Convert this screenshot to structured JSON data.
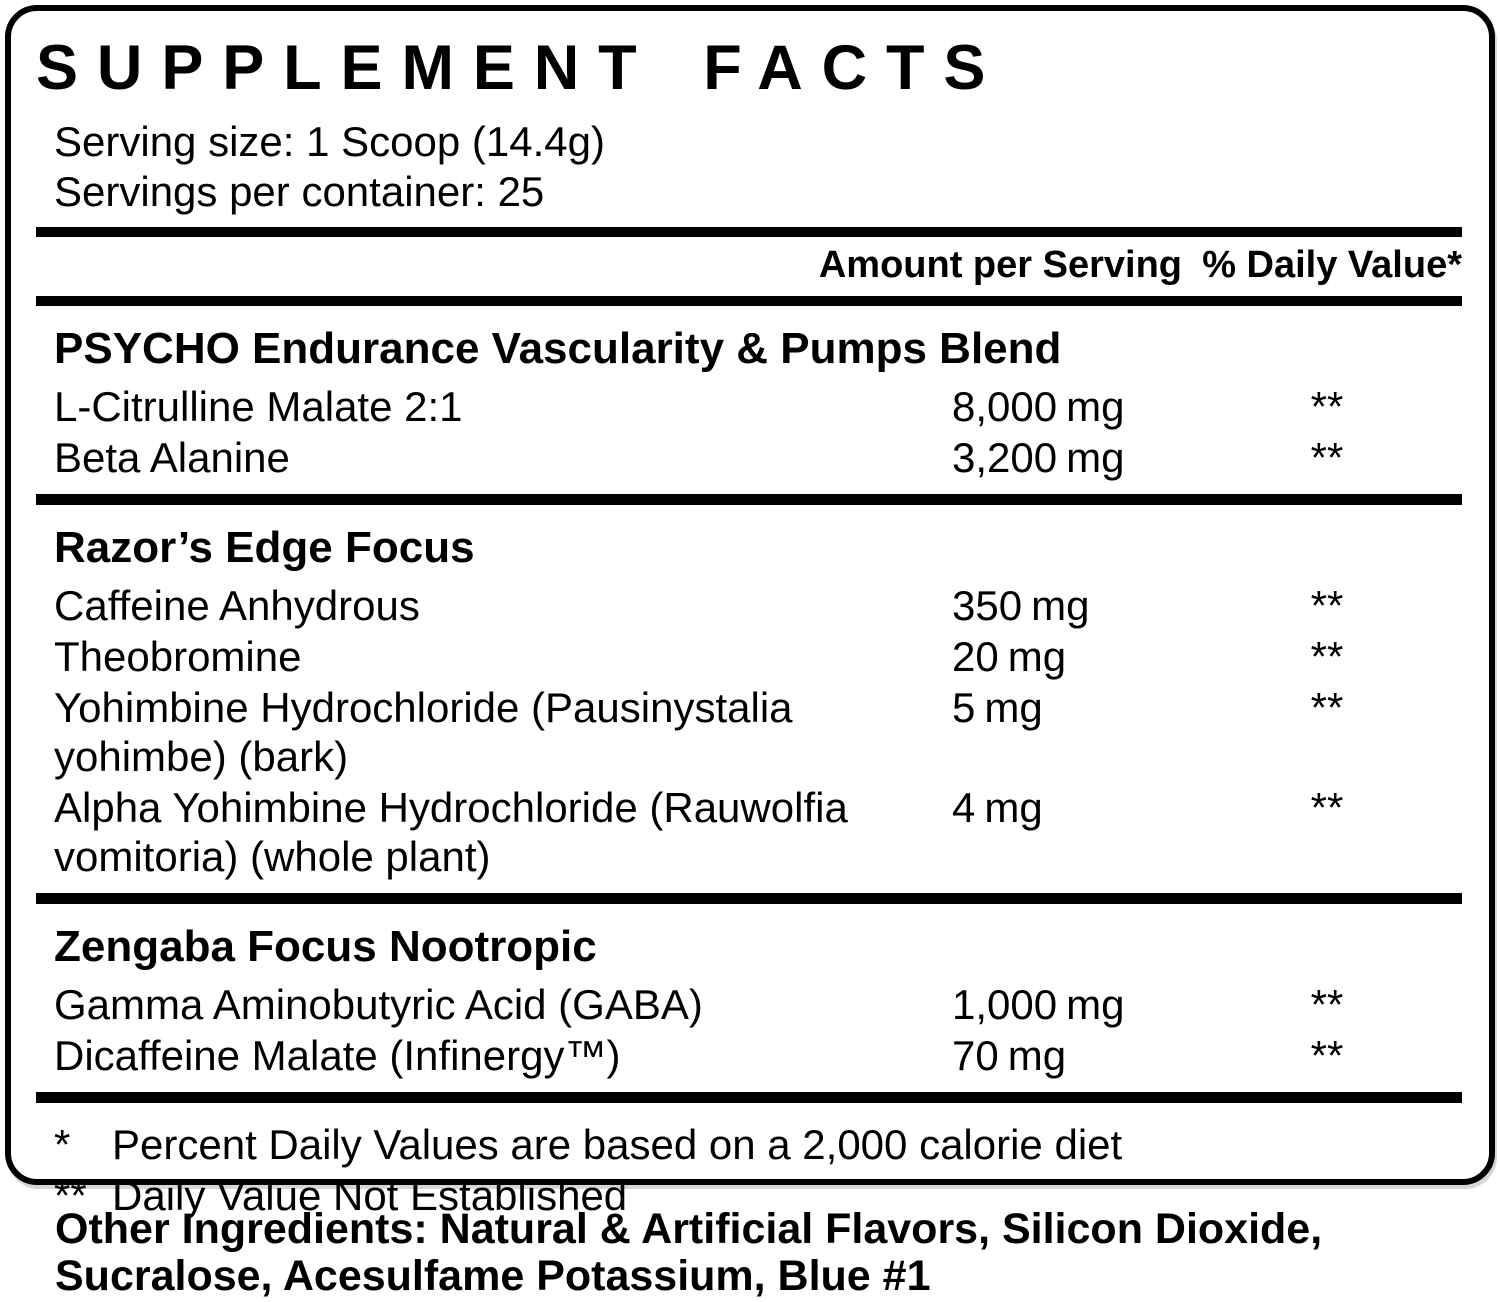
{
  "title": "SUPPLEMENT FACTS",
  "serving": {
    "size": "Serving size: 1 Scoop (14.4g)",
    "per_container": "Servings per container: 25"
  },
  "columns": {
    "amount": "Amount per Serving",
    "daily_value": "% Daily Value*"
  },
  "sections": [
    {
      "heading": "PSYCHO Endurance Vascularity & Pumps Blend",
      "rows": [
        {
          "name": "L-Citrulline Malate 2:1",
          "amount": "8,000",
          "unit": "mg",
          "dv": "**"
        },
        {
          "name": "Beta Alanine",
          "amount": "3,200",
          "unit": "mg",
          "dv": "**"
        }
      ]
    },
    {
      "heading": "Razor’s Edge Focus",
      "rows": [
        {
          "name": "Caffeine Anhydrous",
          "amount": "350",
          "unit": "mg",
          "dv": "**"
        },
        {
          "name": "Theobromine",
          "amount": "20",
          "unit": "mg",
          "dv": "**"
        },
        {
          "name": "Yohimbine Hydrochloride (Pausinystalia\nyohimbe) (bark)",
          "amount": "5",
          "unit": "mg",
          "dv": "**"
        },
        {
          "name": "Alpha Yohimbine Hydrochloride (Rauwolfia\nvomitoria) (whole plant)",
          "amount": "4",
          "unit": "mg",
          "dv": "**"
        }
      ]
    },
    {
      "heading": "Zengaba Focus Nootropic",
      "rows": [
        {
          "name": "Gamma Aminobutyric Acid (GABA)",
          "amount": "1,000",
          "unit": "mg",
          "dv": "**"
        },
        {
          "name": "Dicaffeine Malate (Infinergy™)",
          "amount": "70",
          "unit": "mg",
          "dv": "**"
        }
      ]
    }
  ],
  "footnotes": [
    {
      "marker": "*",
      "text": "Percent Daily Values are based on a 2,000 calorie diet"
    },
    {
      "marker": "**",
      "text": "Daily Value Not Established"
    }
  ],
  "other_ingredients": "Other Ingredients: Natural & Artificial Flavors, Silicon Dioxide,\nSucralose, Acesulfame Potassium, Blue #1"
}
